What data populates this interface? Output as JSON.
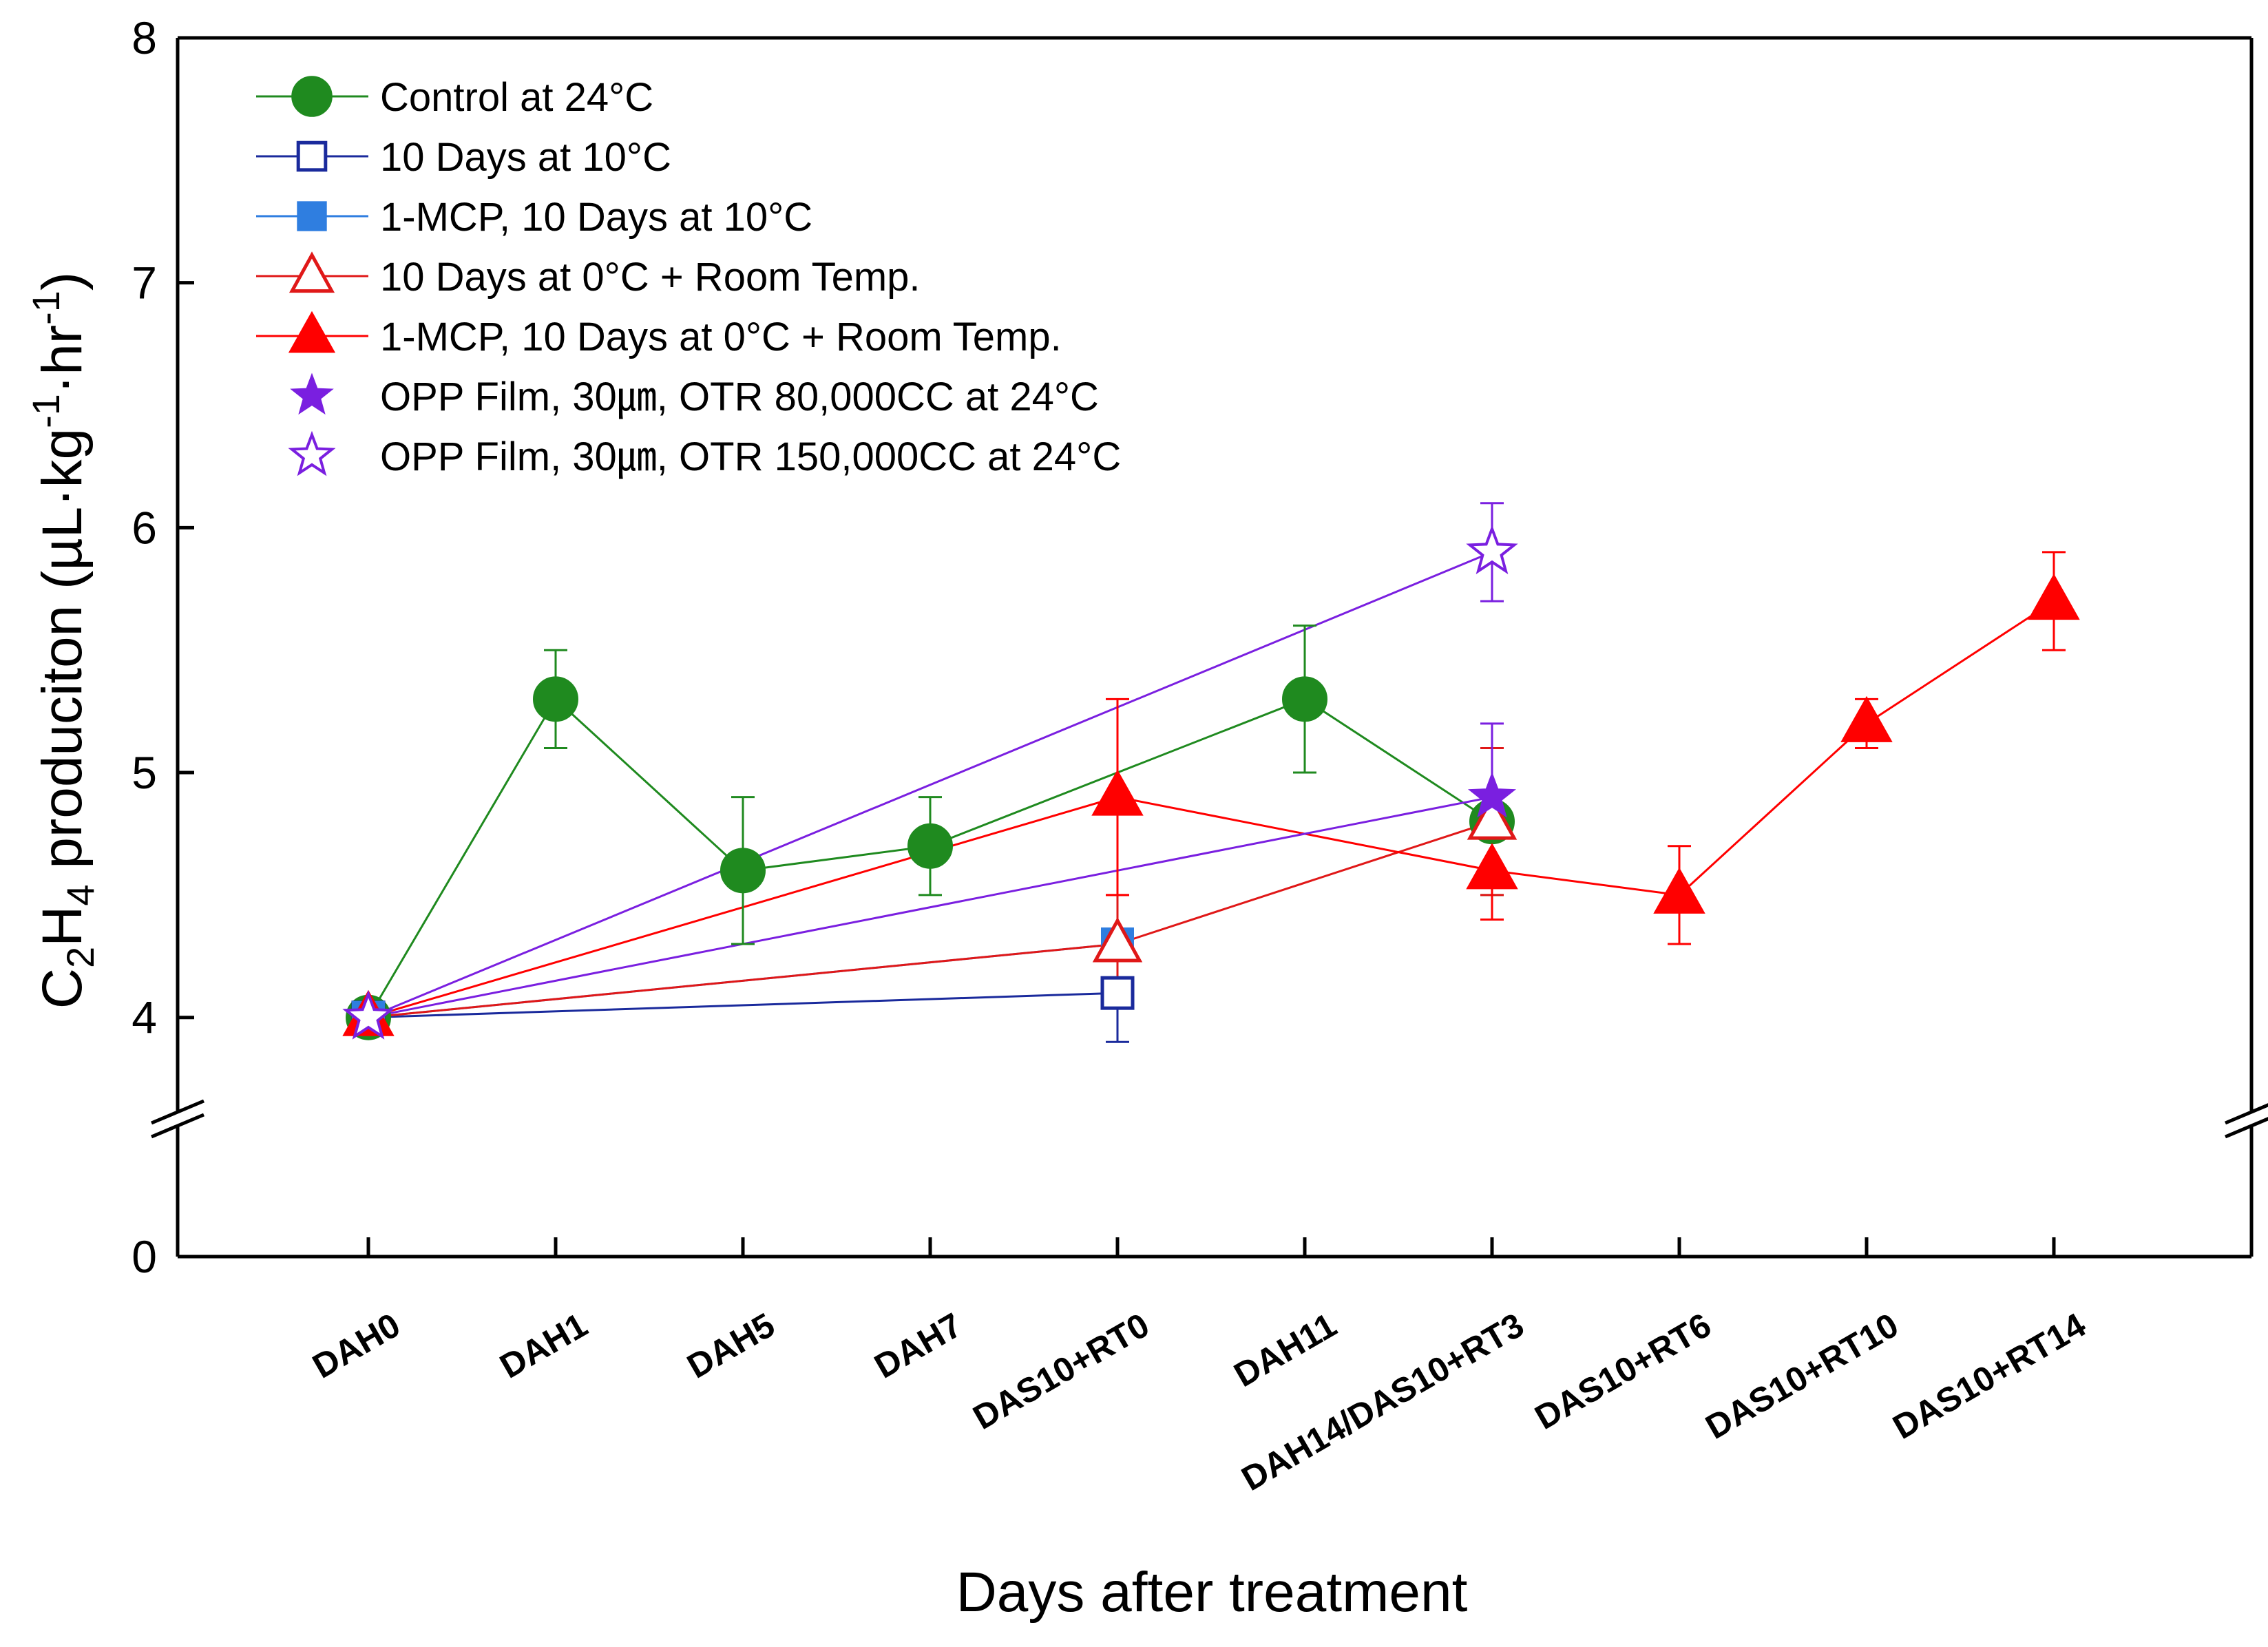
{
  "chart_data": {
    "type": "line",
    "title": "",
    "xlabel": "Days after treatment",
    "ylabel": {
      "prefix": "C",
      "sub1": "2",
      "mid": "H",
      "sub2": "4",
      "suffix": " produciton (µL·kg",
      "sup1": "-1",
      "mid2": "·hr",
      "sup2": "-1",
      "close": ")"
    },
    "categories": [
      "DAH0",
      "DAH1",
      "DAH5",
      "DAH7",
      "DAS10+RT0",
      "DAH11",
      "DAH14/DAS10+RT3",
      "DAS10+RT6",
      "DAS10+RT10",
      "DAS10+RT14"
    ],
    "y_ticks": [
      "0",
      "4",
      "5",
      "6",
      "7",
      "8"
    ],
    "y_segments": [
      {
        "range": [
          0,
          0.5
        ],
        "ticks": [
          0
        ]
      },
      {
        "range": [
          3.6,
          8
        ],
        "ticks": [
          4,
          5,
          6,
          7,
          8
        ]
      }
    ],
    "axis_break": true,
    "legend_position": "top-left",
    "series": [
      {
        "name": "Control at 24°C",
        "color": "#1f8a1f",
        "marker": "circle-filled",
        "points": [
          {
            "x": 0,
            "y": 4.0,
            "err": 0.05
          },
          {
            "x": 1,
            "y": 5.3,
            "err": 0.2
          },
          {
            "x": 2,
            "y": 4.6,
            "err": 0.3
          },
          {
            "x": 3,
            "y": 4.7,
            "err": 0.2
          },
          {
            "x": 5,
            "y": 5.3,
            "err": 0.3
          },
          {
            "x": 6,
            "y": 4.8,
            "err": 0.3
          }
        ]
      },
      {
        "name": "10 Days at 10°C",
        "color": "#1a2a9c",
        "marker": "square-open",
        "points": [
          {
            "x": 0,
            "y": 4.0,
            "err": 0.05
          },
          {
            "x": 4,
            "y": 4.1,
            "err": 0.2
          }
        ]
      },
      {
        "name": "1-MCP, 10 Days at 10°C",
        "color": "#2f7ee0",
        "marker": "square-filled",
        "points": [
          {
            "x": 0,
            "y": 4.0,
            "err": 0.05
          },
          {
            "x": 4,
            "y": 4.3,
            "err": 0.05
          }
        ]
      },
      {
        "name": "10 Days at 0°C + Room Temp.",
        "color": "#e01818",
        "marker": "triangle-open",
        "points": [
          {
            "x": 0,
            "y": 4.0,
            "err": 0.05
          },
          {
            "x": 4,
            "y": 4.3,
            "err": 0.2
          },
          {
            "x": 6,
            "y": 4.8,
            "err": 0.3
          }
        ]
      },
      {
        "name": "1-MCP, 10 Days at 0°C + Room Temp.",
        "color": "#ff0000",
        "marker": "triangle-filled",
        "points": [
          {
            "x": 0,
            "y": 4.0,
            "err": 0.05
          },
          {
            "x": 4,
            "y": 4.9,
            "err": 0.4
          },
          {
            "x": 6,
            "y": 4.6,
            "err": 0.2
          },
          {
            "x": 7,
            "y": 4.5,
            "err": 0.2
          },
          {
            "x": 8,
            "y": 5.2,
            "err": 0.1
          },
          {
            "x": 9,
            "y": 5.7,
            "err": 0.2
          }
        ]
      },
      {
        "name": "OPP Film, 30㎛, OTR 80,000CC at 24°C",
        "color": "#7a1fe0",
        "marker": "star-filled",
        "points": [
          {
            "x": 0,
            "y": 4.0,
            "err": 0.05
          },
          {
            "x": 6,
            "y": 4.9,
            "err": 0.3
          }
        ]
      },
      {
        "name": "OPP Film, 30㎛, OTR 150,000CC at 24°C",
        "color": "#7a1fe0",
        "marker": "star-open",
        "points": [
          {
            "x": 0,
            "y": 4.0,
            "err": 0.05
          },
          {
            "x": 6,
            "y": 5.9,
            "err": 0.2
          }
        ]
      }
    ]
  }
}
